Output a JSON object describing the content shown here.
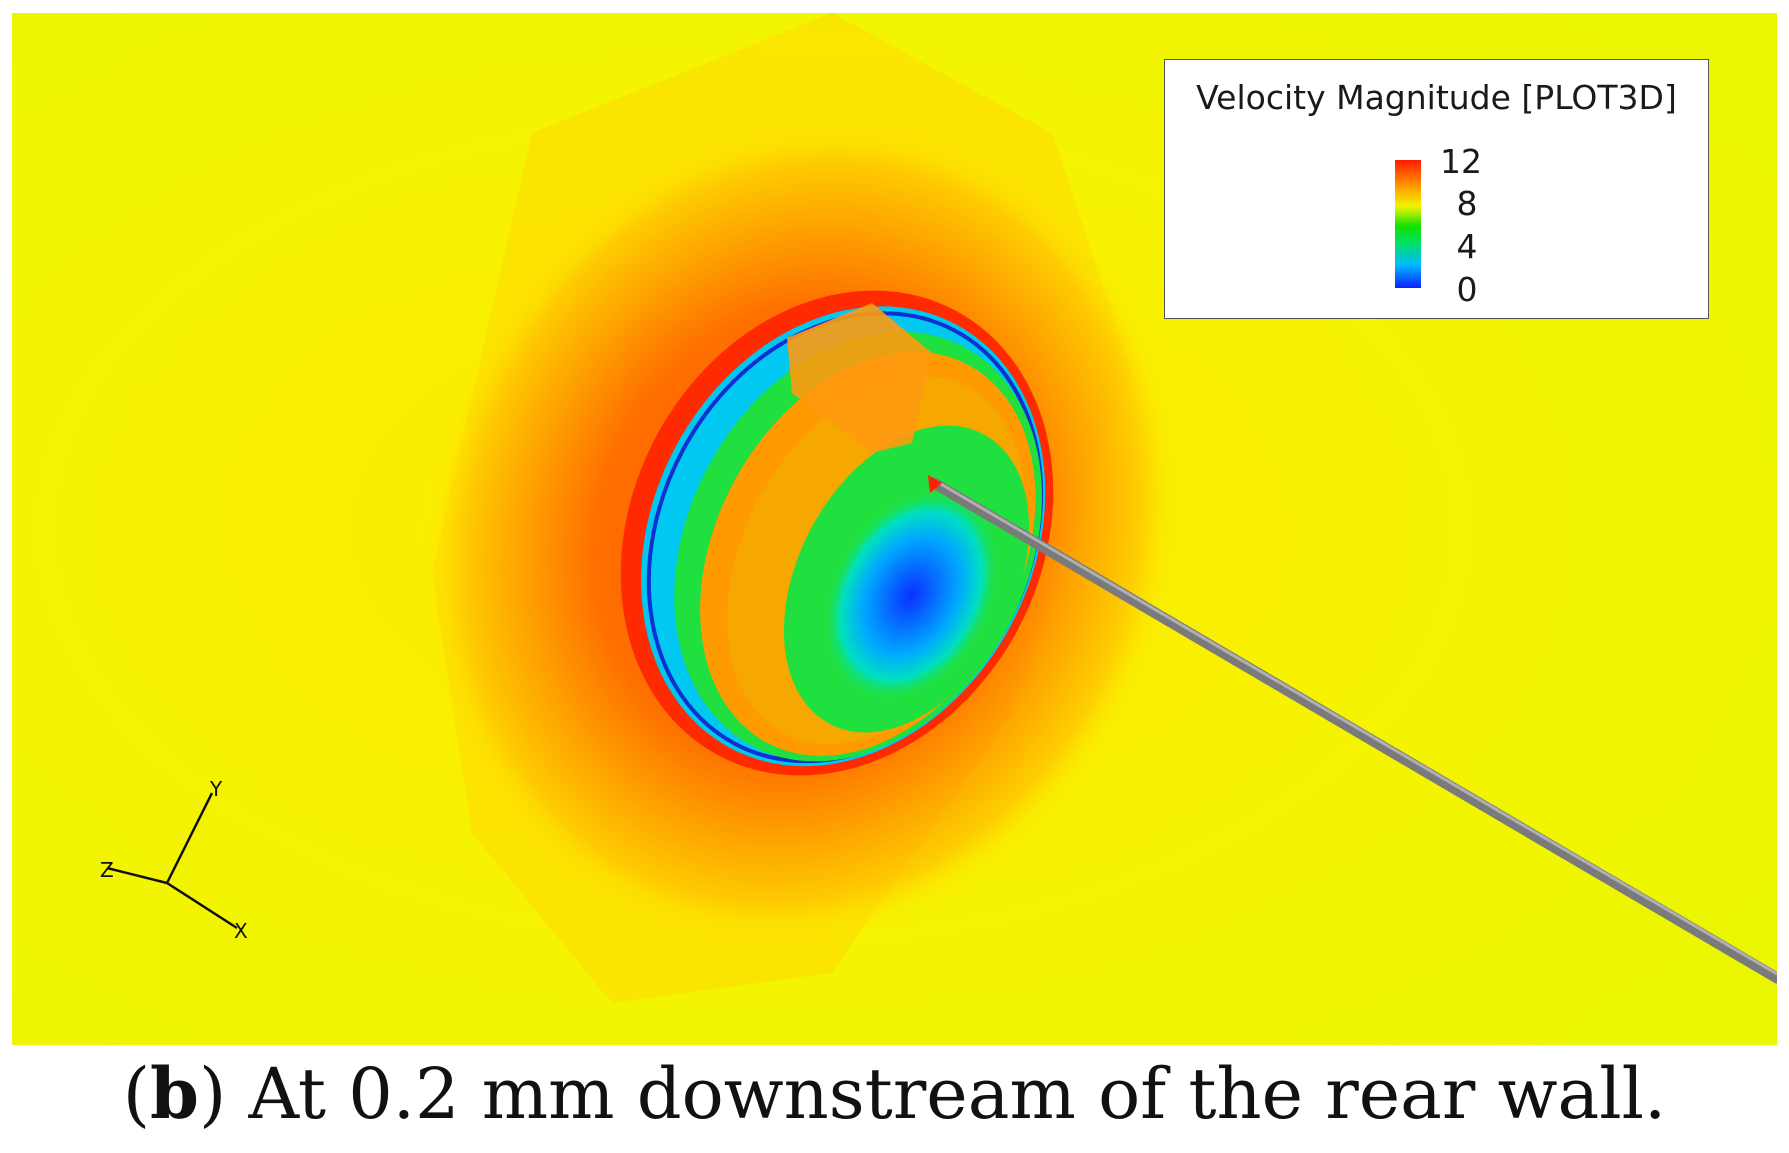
{
  "legend": {
    "title": "Velocity Magnitude [PLOT3D]",
    "ticks": [
      "12",
      "8",
      "4",
      "0"
    ]
  },
  "axes_triad": {
    "y": "Y",
    "z": "Z",
    "x": "X"
  },
  "caption": {
    "open_paren": "(",
    "letter": "b",
    "text": ") At 0.2 mm downstream of the rear wall."
  },
  "colors": {
    "background": "#f2f600",
    "high": "#ff1a00",
    "mid": "#10e000",
    "low": "#0a20ff"
  }
}
